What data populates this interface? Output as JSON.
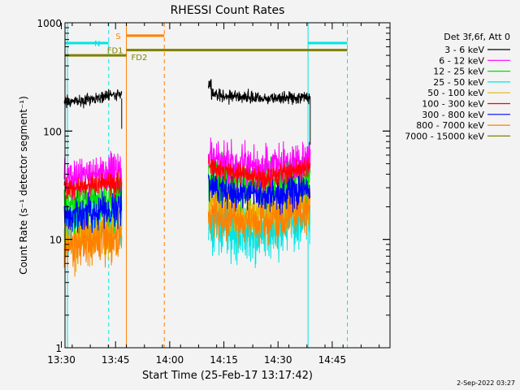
{
  "chart_data": {
    "type": "line",
    "title": "RHESSI Count Rates",
    "xlabel": "Start Time (25-Feb-17 13:17:42)",
    "ylabel": "Count Rate (s⁻¹ detector segment⁻¹)",
    "yscale": "log",
    "ylim": [
      1,
      1000
    ],
    "xlim_minutes": [
      13.3,
      103.3
    ],
    "y_ticks": [
      "1",
      "10",
      "100",
      "1000"
    ],
    "x_ticks": [
      {
        "label": "13:30",
        "t": 12.3
      },
      {
        "label": "13:45",
        "t": 27.3
      },
      {
        "label": "14:00",
        "t": 42.3
      },
      {
        "label": "14:15",
        "t": 57.3
      },
      {
        "label": "14:30",
        "t": 72.3
      },
      {
        "label": "14:45",
        "t": 87.3
      }
    ],
    "legend": {
      "header": "Det 3f,6f, Att 0",
      "placement": "right",
      "entries": [
        {
          "label": "3 - 6 keV",
          "color": "#000000"
        },
        {
          "label": "6 - 12 keV",
          "color": "#ff00ff"
        },
        {
          "label": "12 - 25 keV",
          "color": "#00e000"
        },
        {
          "label": "25 - 50 keV",
          "color": "#00e5e5"
        },
        {
          "label": "50 - 100 keV",
          "color": "#e6b800"
        },
        {
          "label": "100 - 300 keV",
          "color": "#ff0000"
        },
        {
          "label": "300 - 800 keV",
          "color": "#0000ff"
        },
        {
          "label": "800 - 7000 keV",
          "color": "#ff8000"
        },
        {
          "label": "7000 - 15000 keV",
          "color": "#808000"
        }
      ]
    },
    "segments": [
      [
        13.1,
        29.0
      ],
      [
        53.0,
        81.2
      ]
    ],
    "series": [
      {
        "color": "#000000",
        "levels": [
          180,
          200,
          220
        ],
        "levels2": [
          220,
          200,
          205
        ],
        "noise": 0.04
      },
      {
        "color": "#ff00ff",
        "levels": [
          36,
          40,
          44
        ],
        "levels2": [
          55,
          43,
          55
        ],
        "noise": 0.13
      },
      {
        "color": "#00e000",
        "levels": [
          21,
          23,
          25
        ],
        "levels2": [
          38,
          30,
          38
        ],
        "noise": 0.16
      },
      {
        "color": "#00e5e5",
        "levels": [
          13,
          15,
          16
        ],
        "levels2": [
          14,
          11,
          17
        ],
        "noise": 0.2
      },
      {
        "color": "#e6b800",
        "levels": [
          10,
          11,
          12
        ],
        "levels2": [
          22,
          17,
          22
        ],
        "noise": 0.16
      },
      {
        "color": "#ff0000",
        "levels": [
          29,
          32,
          33
        ],
        "levels2": [
          48,
          36,
          46
        ],
        "noise": 0.07
      },
      {
        "color": "#0000ff",
        "levels": [
          16,
          18,
          20
        ],
        "levels2": [
          31,
          25,
          29
        ],
        "noise": 0.11
      },
      {
        "color": "#ff8000",
        "levels": [
          8.5,
          9.5,
          10.5
        ],
        "levels2": [
          17,
          14,
          19
        ],
        "noise": 0.14
      }
    ],
    "flags": [
      {
        "label": "N",
        "color": "#00e5e5",
        "y": 650,
        "ranges": [
          [
            13.3,
            25.4
          ],
          [
            80.6,
            91.5
          ]
        ]
      },
      {
        "label": "S",
        "color": "#ff8000",
        "y": 760,
        "ranges": [
          [
            30.3,
            40.8
          ]
        ]
      },
      {
        "label": "FD1",
        "color": "#808000",
        "y": 560,
        "ranges": [
          [
            30.3,
            91.5
          ]
        ]
      },
      {
        "label": "FD2",
        "color": "#808000",
        "y": 500,
        "ranges": [
          [
            13.3,
            30.3
          ]
        ]
      }
    ],
    "vlines": [
      {
        "t": 14.0,
        "color": "#00e5e5",
        "style": "solid"
      },
      {
        "t": 25.4,
        "color": "#00e5e5",
        "style": "dashed"
      },
      {
        "t": 30.3,
        "color": "#ff8000",
        "style": "solid"
      },
      {
        "t": 40.8,
        "color": "#ff8000",
        "style": "dashed"
      },
      {
        "t": 80.6,
        "color": "#00e5e5",
        "style": "solid"
      },
      {
        "t": 91.5,
        "color": "#00e5e5",
        "style": "dashed"
      }
    ]
  },
  "footer_date": "2-Sep-2022 03:27"
}
